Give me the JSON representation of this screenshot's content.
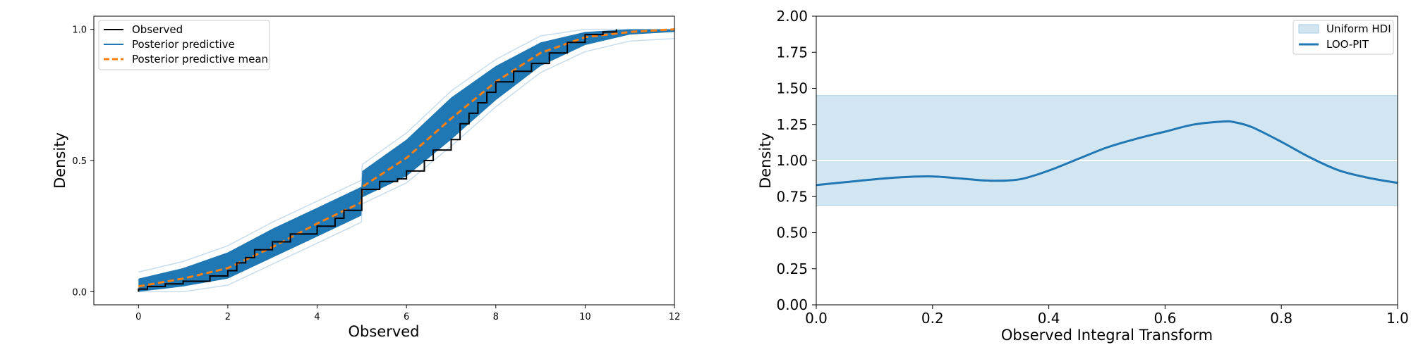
{
  "chart_data": [
    {
      "type": "line",
      "xlabel": "Observed",
      "ylabel": "Density",
      "xlim": [
        -1,
        12
      ],
      "ylim": [
        -0.05,
        1.05
      ],
      "x_ticks": [
        0,
        2,
        4,
        6,
        8,
        10,
        12
      ],
      "x_tick_labels": [
        "0",
        "2",
        "4",
        "6",
        "8",
        "10",
        "12"
      ],
      "y_ticks": [
        0.0,
        0.5,
        1.0
      ],
      "y_tick_labels": [
        "0.0",
        "0.5",
        "1.0"
      ],
      "grid": false,
      "legend": {
        "position": "top-left",
        "entries": [
          "Observed",
          "Posterior predictive",
          "Posterior predictive mean"
        ]
      },
      "colors": {
        "observed": "#000000",
        "posterior_predictive": "#1f77b4",
        "posterior_predictive_mean": "#ff7f0e"
      },
      "series": [
        {
          "name": "Observed",
          "style": "step",
          "x": [
            0,
            0.2,
            0.6,
            1.0,
            1.6,
            2.0,
            2.2,
            2.4,
            2.6,
            3.0,
            3.4,
            4.0,
            4.4,
            4.6,
            5.0,
            5.0,
            5.4,
            5.8,
            6.0,
            6.4,
            6.6,
            7.0,
            7.2,
            7.4,
            7.6,
            7.8,
            8.0,
            8.4,
            8.8,
            9.2,
            9.6,
            10.0,
            10.4,
            10.7
          ],
          "y": [
            0.01,
            0.02,
            0.03,
            0.04,
            0.06,
            0.08,
            0.11,
            0.13,
            0.16,
            0.19,
            0.22,
            0.25,
            0.28,
            0.31,
            0.33,
            0.39,
            0.42,
            0.43,
            0.46,
            0.5,
            0.54,
            0.58,
            0.64,
            0.68,
            0.72,
            0.76,
            0.8,
            0.84,
            0.87,
            0.91,
            0.95,
            0.98,
            0.99,
            1.0
          ]
        },
        {
          "name": "Posterior predictive",
          "style": "band",
          "x": [
            0,
            1,
            2,
            3,
            4,
            4.99,
            5.01,
            6,
            7,
            8,
            9,
            10,
            11,
            12
          ],
          "lower": [
            0.0,
            0.02,
            0.05,
            0.13,
            0.21,
            0.29,
            0.36,
            0.44,
            0.58,
            0.73,
            0.86,
            0.94,
            0.98,
            0.99
          ],
          "upper": [
            0.05,
            0.09,
            0.15,
            0.24,
            0.32,
            0.4,
            0.46,
            0.58,
            0.74,
            0.86,
            0.95,
            0.99,
            1.0,
            1.0
          ]
        },
        {
          "name": "Posterior predictive mean",
          "style": "dashed",
          "x": [
            0,
            1,
            2,
            3,
            4,
            4.99,
            5.01,
            6,
            7,
            8,
            9,
            10,
            11,
            12
          ],
          "y": [
            0.02,
            0.05,
            0.09,
            0.17,
            0.26,
            0.34,
            0.4,
            0.51,
            0.66,
            0.8,
            0.91,
            0.97,
            0.99,
            1.0
          ]
        }
      ]
    },
    {
      "type": "line",
      "xlabel": "Observed Integral Transform",
      "ylabel": "Density",
      "xlim": [
        0,
        1
      ],
      "ylim": [
        0,
        2
      ],
      "x_ticks": [
        0.0,
        0.2,
        0.4,
        0.6,
        0.8,
        1.0
      ],
      "x_tick_labels": [
        "0.0",
        "0.2",
        "0.4",
        "0.6",
        "0.8",
        "1.0"
      ],
      "y_ticks": [
        0.0,
        0.25,
        0.5,
        0.75,
        1.0,
        1.25,
        1.5,
        1.75,
        2.0
      ],
      "y_tick_labels": [
        "0.00",
        "0.25",
        "0.50",
        "0.75",
        "1.00",
        "1.25",
        "1.50",
        "1.75",
        "2.00"
      ],
      "grid": false,
      "legend": {
        "position": "top-right",
        "entries": [
          "Uniform HDI",
          "LOO-PIT"
        ]
      },
      "colors": {
        "uniform_hdi": "#a6cee3",
        "loo_pit": "#1f77b4",
        "reference_line": "#ffffff"
      },
      "uniform_hdi": [
        0.69,
        1.45
      ],
      "reference_line": 1.0,
      "series": [
        {
          "name": "LOO-PIT",
          "x": [
            0.0,
            0.05,
            0.1,
            0.15,
            0.2,
            0.25,
            0.3,
            0.35,
            0.4,
            0.45,
            0.5,
            0.55,
            0.6,
            0.65,
            0.7,
            0.72,
            0.75,
            0.8,
            0.85,
            0.9,
            0.95,
            1.0
          ],
          "y": [
            0.83,
            0.85,
            0.87,
            0.885,
            0.89,
            0.875,
            0.86,
            0.87,
            0.93,
            1.01,
            1.09,
            1.15,
            1.2,
            1.25,
            1.27,
            1.265,
            1.23,
            1.13,
            1.02,
            0.93,
            0.88,
            0.845
          ]
        }
      ]
    }
  ]
}
